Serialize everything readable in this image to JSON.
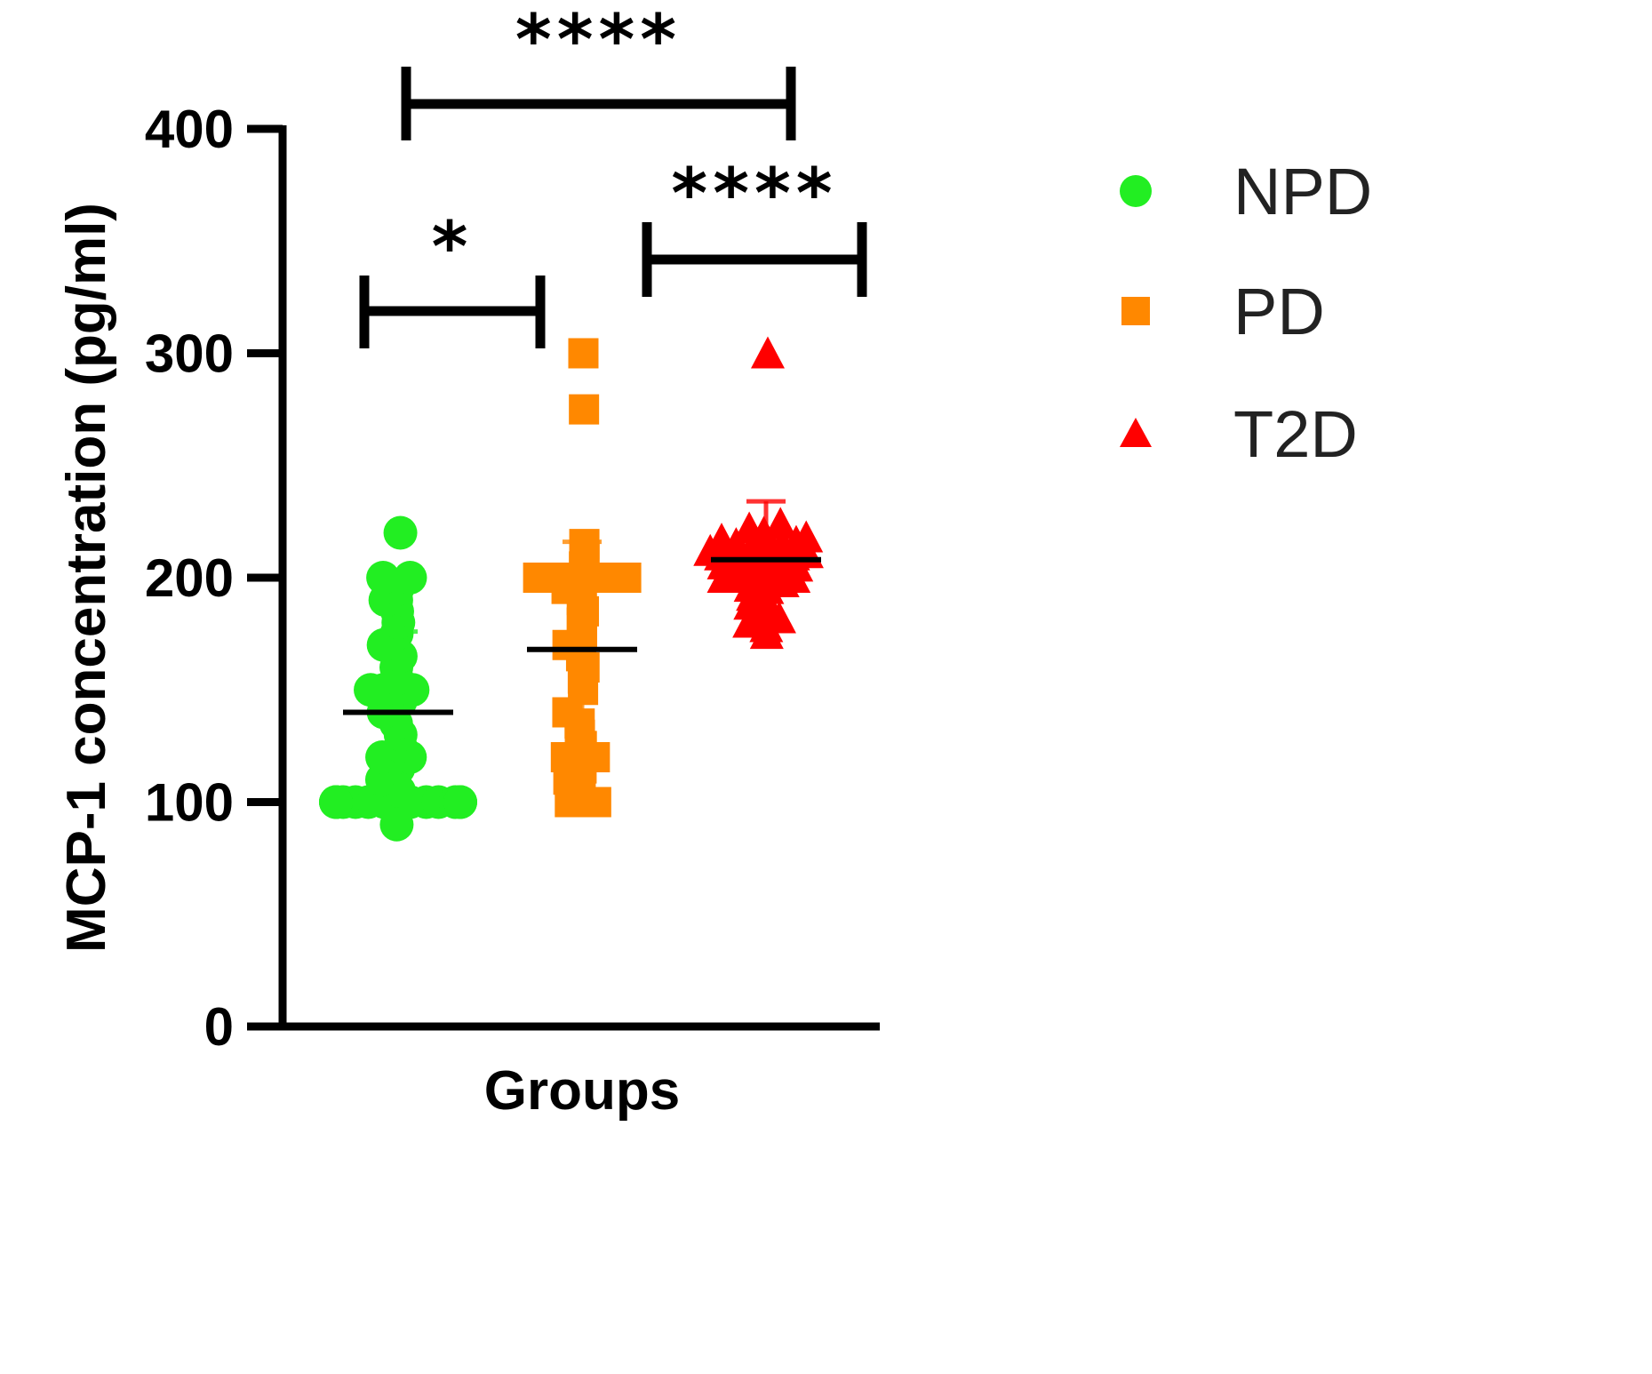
{
  "chart_data": {
    "type": "scatter",
    "title": "",
    "xlabel": "Groups",
    "ylabel": "MCP-1 concentration (pg/ml)",
    "ylim": [
      0,
      400
    ],
    "yticks": [
      "0",
      "100",
      "200",
      "300",
      "400"
    ],
    "grid": false,
    "legend_position": "right",
    "series": [
      {
        "name": "NPD",
        "color": "#22ee22",
        "marker": "circle",
        "mean": 140,
        "sd_upper": 176,
        "sd_lower": 104,
        "values": [
          100,
          100,
          100,
          100,
          100,
          100,
          100,
          100,
          100,
          100,
          100,
          100,
          100,
          100,
          100,
          90,
          105,
          110,
          115,
          120,
          120,
          120,
          125,
          130,
          135,
          140,
          145,
          150,
          150,
          150,
          150,
          155,
          160,
          165,
          170,
          175,
          180,
          185,
          190,
          190,
          195,
          200,
          200,
          220
        ]
      },
      {
        "name": "PD",
        "color": "#ff8800",
        "marker": "square",
        "mean": 168,
        "sd_upper": 216,
        "sd_lower": 120,
        "values": [
          100,
          100,
          100,
          105,
          110,
          115,
          115,
          120,
          120,
          120,
          125,
          130,
          135,
          140,
          150,
          155,
          160,
          165,
          170,
          175,
          180,
          185,
          190,
          195,
          195,
          200,
          200,
          200,
          200,
          200,
          205,
          210,
          215,
          275,
          300
        ]
      },
      {
        "name": "T2D",
        "color": "#ff0000",
        "marker": "triangle",
        "mean": 208,
        "sd_upper": 234,
        "sd_lower": 182,
        "values": [
          175,
          178,
          180,
          182,
          185,
          188,
          190,
          192,
          195,
          196,
          198,
          200,
          200,
          200,
          201,
          202,
          203,
          204,
          205,
          206,
          207,
          208,
          208,
          209,
          210,
          210,
          211,
          212,
          213,
          214,
          215,
          215,
          216,
          217,
          218,
          220,
          222,
          224,
          300
        ]
      }
    ],
    "significance": [
      {
        "label": "*",
        "groups": [
          "NPD",
          "PD"
        ]
      },
      {
        "label": "****",
        "groups": [
          "PD",
          "T2D"
        ]
      },
      {
        "label": "****",
        "groups": [
          "NPD",
          "T2D"
        ]
      }
    ]
  }
}
